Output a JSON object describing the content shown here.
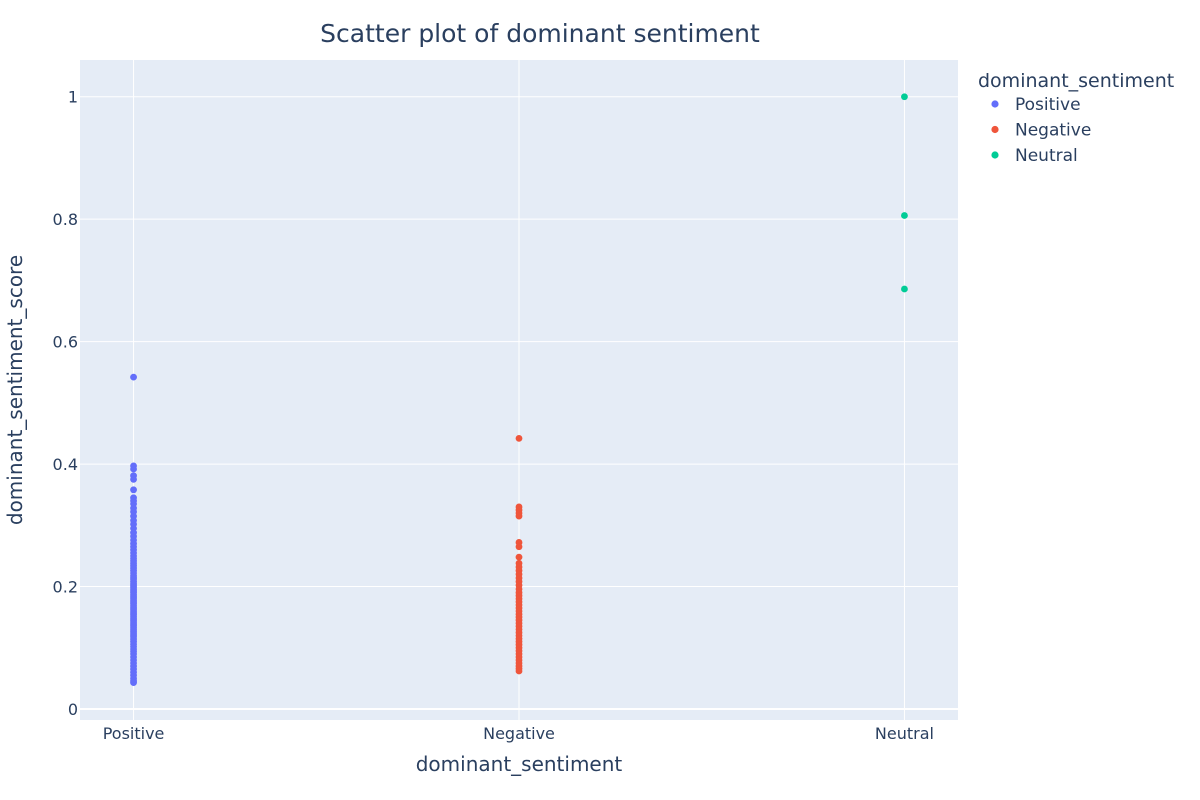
{
  "chart_data": {
    "type": "scatter",
    "title": "Scatter plot of dominant sentiment",
    "xlabel": "dominant_sentiment",
    "ylabel": "dominant_sentiment_score",
    "categories": [
      "Positive",
      "Negative",
      "Neutral"
    ],
    "ylim": [
      -0.018,
      1.06
    ],
    "yticks": [
      0,
      0.2,
      0.4,
      0.6,
      0.8,
      1
    ],
    "ytick_labels": [
      "0",
      "0.2",
      "0.4",
      "0.6",
      "0.8",
      "1"
    ],
    "grid": true,
    "legend": {
      "title": "dominant_sentiment",
      "placement": "top-right, outside plot"
    },
    "series": [
      {
        "name": "Positive",
        "color": "#636efa",
        "category": "Positive",
        "values": [
          0.542,
          0.397,
          0.392,
          0.381,
          0.375,
          0.358,
          0.345,
          0.34,
          0.335,
          0.328,
          0.322,
          0.315,
          0.308,
          0.302,
          0.295,
          0.288,
          0.282,
          0.276,
          0.27,
          0.265,
          0.26,
          0.255,
          0.25,
          0.246,
          0.242,
          0.238,
          0.234,
          0.23,
          0.226,
          0.222,
          0.218,
          0.215,
          0.212,
          0.208,
          0.205,
          0.202,
          0.199,
          0.196,
          0.193,
          0.19,
          0.187,
          0.184,
          0.181,
          0.178,
          0.175,
          0.172,
          0.169,
          0.166,
          0.163,
          0.16,
          0.157,
          0.154,
          0.151,
          0.148,
          0.145,
          0.142,
          0.139,
          0.136,
          0.133,
          0.13,
          0.127,
          0.124,
          0.121,
          0.118,
          0.114,
          0.11,
          0.106,
          0.102,
          0.098,
          0.094,
          0.09,
          0.085,
          0.08,
          0.075,
          0.07,
          0.065,
          0.06,
          0.055,
          0.05,
          0.046,
          0.043
        ]
      },
      {
        "name": "Negative",
        "color": "#ef553b",
        "category": "Negative",
        "values": [
          0.442,
          0.33,
          0.325,
          0.32,
          0.315,
          0.272,
          0.265,
          0.248,
          0.238,
          0.232,
          0.226,
          0.22,
          0.214,
          0.208,
          0.202,
          0.196,
          0.19,
          0.185,
          0.18,
          0.175,
          0.17,
          0.165,
          0.16,
          0.155,
          0.15,
          0.145,
          0.14,
          0.135,
          0.13,
          0.125,
          0.12,
          0.115,
          0.11,
          0.105,
          0.1,
          0.095,
          0.09,
          0.085,
          0.08,
          0.075,
          0.07,
          0.066,
          0.062
        ]
      },
      {
        "name": "Neutral",
        "color": "#00cc96",
        "category": "Neutral",
        "values": [
          1.0,
          0.806,
          0.686
        ]
      }
    ]
  }
}
